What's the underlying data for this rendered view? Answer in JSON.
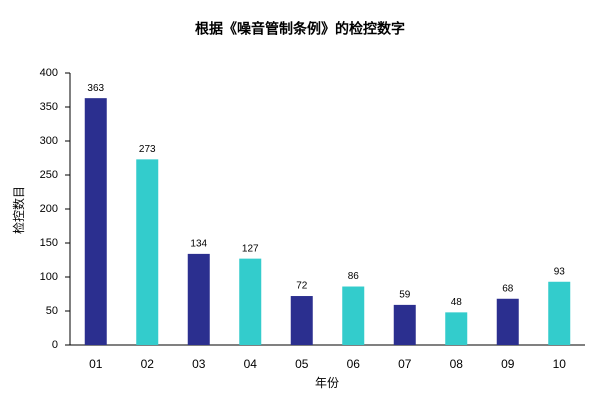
{
  "chart_data": {
    "type": "bar",
    "title": "根据《噪音管制条例》的检控数字",
    "x_label": "年份",
    "y_label": "检控数目",
    "categories": [
      "01",
      "02",
      "03",
      "04",
      "05",
      "06",
      "07",
      "08",
      "09",
      "10"
    ],
    "values": [
      363,
      273,
      134,
      127,
      72,
      86,
      59,
      48,
      68,
      93
    ],
    "colors": [
      "#2b2f8f",
      "#33cccc",
      "#2b2f8f",
      "#33cccc",
      "#2b2f8f",
      "#33cccc",
      "#2b2f8f",
      "#33cccc",
      "#2b2f8f",
      "#33cccc"
    ],
    "ylim": [
      0,
      400
    ],
    "yticks": [
      0,
      50,
      100,
      150,
      200,
      250,
      300,
      350,
      400
    ],
    "grid": false
  }
}
